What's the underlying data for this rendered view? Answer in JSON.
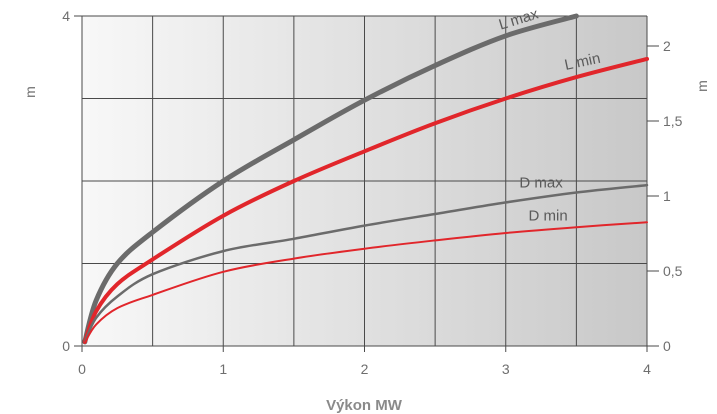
{
  "chart_data": {
    "type": "line",
    "title": "",
    "xlabel": "Výkon MW",
    "ylabel_left": "m",
    "ylabel_right": "m",
    "xlim": [
      0,
      4
    ],
    "ylim_left": [
      0,
      4
    ],
    "ylim_right": [
      0,
      2.2
    ],
    "x_ticks": [
      "0",
      "1",
      "2",
      "3",
      "4"
    ],
    "y_left_ticks": [
      "0",
      "4"
    ],
    "y_right_ticks": [
      "0",
      "0,5",
      "1",
      "1,5",
      "2"
    ],
    "grid": true,
    "series": [
      {
        "name": "L max",
        "axis": "left",
        "color": "#6b6b6b",
        "x": [
          0.02,
          0.1,
          0.25,
          0.5,
          1,
          1.5,
          2,
          2.5,
          3,
          3.5
        ],
        "y": [
          0.05,
          0.55,
          1.0,
          1.38,
          2.0,
          2.5,
          2.98,
          3.4,
          3.76,
          4.0
        ]
      },
      {
        "name": "L min",
        "axis": "left",
        "color": "#e1262b",
        "x": [
          0.02,
          0.1,
          0.25,
          0.5,
          1,
          1.5,
          2,
          2.5,
          3,
          3.5,
          4
        ],
        "y": [
          0.05,
          0.42,
          0.75,
          1.05,
          1.58,
          2.0,
          2.36,
          2.7,
          3.0,
          3.26,
          3.48
        ]
      },
      {
        "name": "D max",
        "axis": "left",
        "color": "#6b6b6b",
        "x": [
          0.02,
          0.1,
          0.25,
          0.5,
          1,
          1.5,
          2,
          2.5,
          3,
          3.5,
          4
        ],
        "y": [
          0.05,
          0.34,
          0.6,
          0.87,
          1.15,
          1.3,
          1.46,
          1.6,
          1.74,
          1.86,
          1.95
        ]
      },
      {
        "name": "D min",
        "axis": "left",
        "color": "#e1262b",
        "x": [
          0.02,
          0.1,
          0.25,
          0.5,
          1,
          1.5,
          2,
          2.5,
          3,
          3.5,
          4
        ],
        "y": [
          0.04,
          0.26,
          0.46,
          0.62,
          0.9,
          1.06,
          1.18,
          1.28,
          1.37,
          1.44,
          1.5
        ]
      }
    ]
  }
}
